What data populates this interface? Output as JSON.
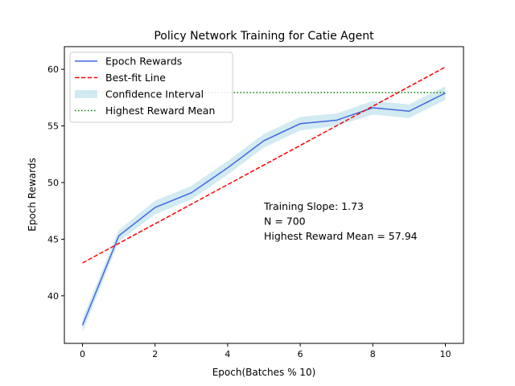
{
  "chart_data": {
    "type": "line",
    "title": "Policy Network Training for Catie Agent",
    "xlabel": "Epoch(Batches % 10)",
    "ylabel": "Epoch Rewards",
    "xlim": [
      -0.5,
      10.5
    ],
    "ylim": [
      35.8,
      62.0
    ],
    "xticks": [
      0,
      2,
      4,
      6,
      8,
      10
    ],
    "yticks": [
      40,
      45,
      50,
      55,
      60
    ],
    "grid": false,
    "legend_position": "top-left",
    "x": [
      0,
      1,
      2,
      3,
      4,
      5,
      6,
      7,
      8,
      9,
      10
    ],
    "series": [
      {
        "name": "Epoch Rewards",
        "kind": "line",
        "color": "#4169e1",
        "values": [
          37.4,
          45.3,
          47.8,
          49.1,
          51.3,
          53.7,
          55.2,
          55.5,
          56.6,
          56.3,
          57.9
        ]
      },
      {
        "name": "Best-fit Line",
        "kind": "dashed",
        "color": "#ff0000",
        "x": [
          0,
          10
        ],
        "values": [
          42.9,
          60.2
        ]
      },
      {
        "name": "Confidence Interval",
        "kind": "band",
        "color": "#add8e6",
        "lower": [
          36.8,
          44.8,
          47.2,
          48.5,
          50.7,
          53.1,
          54.6,
          55.0,
          56.0,
          55.7,
          57.3
        ],
        "upper": [
          38.0,
          45.8,
          48.4,
          49.7,
          51.9,
          54.3,
          55.8,
          56.1,
          57.2,
          56.9,
          58.5
        ]
      },
      {
        "name": "Highest Reward Mean",
        "kind": "dotted",
        "color": "#008000",
        "x": [
          0,
          10
        ],
        "values": [
          57.94,
          57.94
        ]
      }
    ],
    "annotation": {
      "x": 5.0,
      "lines": [
        "Training Slope: 1.73",
        "N = 700",
        "Highest Reward Mean = 57.94"
      ]
    }
  }
}
